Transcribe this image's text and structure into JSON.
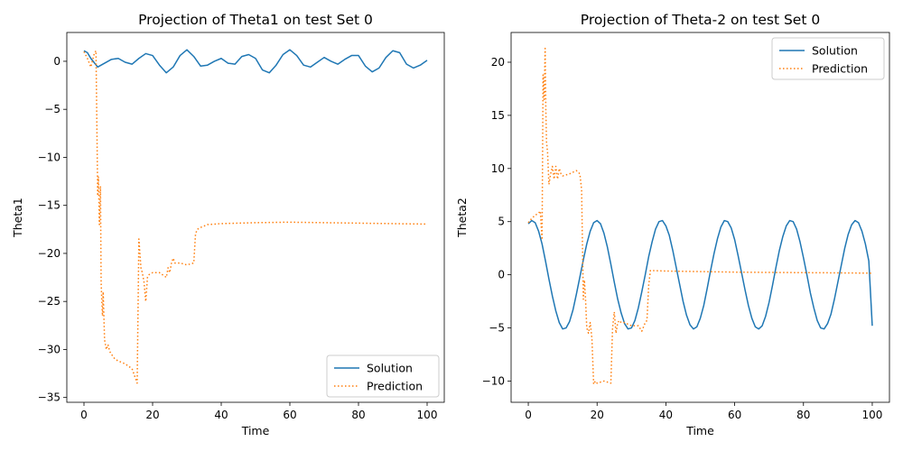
{
  "chart_data": [
    {
      "type": "line",
      "title": "Projection of Theta1 on test Set 0",
      "xlabel": "Time",
      "ylabel": "Theta1",
      "xlim": [
        -5,
        105
      ],
      "ylim": [
        -35.5,
        3
      ],
      "xticks": [
        0,
        20,
        40,
        60,
        80,
        100
      ],
      "yticks": [
        0,
        -5,
        -10,
        -15,
        -20,
        -25,
        -30,
        -35
      ],
      "xtick_labels": [
        "0",
        "20",
        "40",
        "60",
        "80",
        "100"
      ],
      "ytick_labels": [
        "0",
        "−5",
        "−10",
        "−15",
        "−20",
        "−25",
        "−30",
        "−35"
      ],
      "grid": false,
      "legend_position": "lower-right",
      "series": [
        {
          "name": "Solution",
          "style": "solid",
          "color": "#1f77b4",
          "x": [
            0,
            1,
            2,
            4,
            6,
            8,
            10,
            12,
            14,
            16,
            18,
            20,
            22,
            24,
            26,
            28,
            30,
            32,
            34,
            36,
            38,
            40,
            42,
            44,
            46,
            48,
            50,
            52,
            54,
            56,
            58,
            60,
            62,
            64,
            66,
            68,
            70,
            72,
            74,
            76,
            78,
            80,
            82,
            84,
            86,
            88,
            90,
            92,
            94,
            96,
            98,
            100
          ],
          "y": [
            1.1,
            0.9,
            0.3,
            -0.6,
            -0.2,
            0.2,
            0.3,
            -0.1,
            -0.3,
            0.3,
            0.8,
            0.6,
            -0.4,
            -1.2,
            -0.6,
            0.6,
            1.2,
            0.5,
            -0.5,
            -0.4,
            0.0,
            0.3,
            -0.2,
            -0.3,
            0.5,
            0.7,
            0.3,
            -0.9,
            -1.2,
            -0.4,
            0.7,
            1.2,
            0.6,
            -0.4,
            -0.6,
            -0.1,
            0.4,
            0.0,
            -0.3,
            0.2,
            0.6,
            0.6,
            -0.5,
            -1.1,
            -0.7,
            0.4,
            1.1,
            0.9,
            -0.3,
            -0.7,
            -0.4,
            0.1
          ]
        },
        {
          "name": "Prediction",
          "style": "dotted",
          "color": "#ff7f0e",
          "x": [
            0,
            1,
            2,
            3,
            3.5,
            4,
            4.2,
            4.5,
            4.8,
            5,
            5.2,
            5.4,
            5.6,
            6,
            6.5,
            7,
            7.5,
            8,
            9,
            10,
            12,
            14,
            15.5,
            16,
            16.3,
            16.6,
            17,
            17.5,
            18,
            18.5,
            19,
            20,
            22,
            24,
            24.5,
            25,
            25.5,
            26,
            26.5,
            27,
            28,
            30,
            32,
            32.5,
            33,
            34,
            36,
            40,
            50,
            60,
            70,
            80,
            90,
            100
          ],
          "y": [
            1.0,
            0.3,
            -0.6,
            0.8,
            1.1,
            -14,
            -12,
            -17,
            -13,
            -23,
            -25,
            -26.5,
            -24,
            -29,
            -30,
            -29.5,
            -30.2,
            -30.5,
            -31,
            -31.2,
            -31.5,
            -32,
            -33.5,
            -18.5,
            -20,
            -21.5,
            -22,
            -23,
            -25,
            -22.5,
            -22.2,
            -22,
            -22,
            -22.5,
            -21.5,
            -22,
            -21,
            -20.5,
            -21,
            -21,
            -21,
            -21.2,
            -21,
            -18,
            -17.5,
            -17.3,
            -17,
            -16.9,
            -16.8,
            -16.75,
            -16.8,
            -16.85,
            -16.9,
            -16.95
          ]
        }
      ]
    },
    {
      "type": "line",
      "title": "Projection of Theta-2 on test Set 0",
      "xlabel": "Time",
      "ylabel": "Theta2",
      "xlim": [
        -5,
        105
      ],
      "ylim": [
        -12,
        22.8
      ],
      "xticks": [
        0,
        20,
        40,
        60,
        80,
        100
      ],
      "yticks": [
        20,
        15,
        10,
        5,
        0,
        -5,
        -10
      ],
      "xtick_labels": [
        "0",
        "20",
        "40",
        "60",
        "80",
        "100"
      ],
      "ytick_labels": [
        "20",
        "15",
        "10",
        "5",
        "0",
        "−5",
        "−10"
      ],
      "grid": false,
      "legend_position": "upper-right",
      "series": [
        {
          "name": "Solution",
          "style": "solid",
          "color": "#1f77b4",
          "x": [
            0,
            1,
            2,
            3,
            4,
            5,
            6,
            7,
            8,
            9,
            10,
            11,
            12,
            13,
            14,
            15,
            16,
            17,
            18,
            19,
            20,
            21,
            22,
            23,
            24,
            25,
            26,
            27,
            28,
            29,
            30,
            31,
            32,
            33,
            34,
            35,
            36,
            37,
            38,
            39,
            40,
            41,
            42,
            43,
            44,
            45,
            46,
            47,
            48,
            49,
            50,
            51,
            52,
            53,
            54,
            55,
            56,
            57,
            58,
            59,
            60,
            61,
            62,
            63,
            64,
            65,
            66,
            67,
            68,
            69,
            70,
            71,
            72,
            73,
            74,
            75,
            76,
            77,
            78,
            79,
            80,
            81,
            82,
            83,
            84,
            85,
            86,
            87,
            88,
            89,
            90,
            91,
            92,
            93,
            94,
            95,
            96,
            97,
            98,
            99,
            100
          ],
          "y": [
            4.8,
            5.1,
            4.9,
            4.1,
            2.9,
            1.3,
            -0.4,
            -2.0,
            -3.4,
            -4.5,
            -5.1,
            -5.0,
            -4.4,
            -3.3,
            -1.8,
            -0.2,
            1.4,
            2.9,
            4.1,
            4.9,
            5.1,
            4.8,
            3.9,
            2.6,
            1.0,
            -0.7,
            -2.3,
            -3.6,
            -4.6,
            -5.1,
            -5.0,
            -4.3,
            -3.1,
            -1.6,
            0.0,
            1.7,
            3.1,
            4.3,
            5.0,
            5.1,
            4.6,
            3.7,
            2.3,
            0.7,
            -0.9,
            -2.5,
            -3.8,
            -4.7,
            -5.1,
            -4.9,
            -4.1,
            -2.9,
            -1.3,
            0.4,
            2.0,
            3.4,
            4.5,
            5.1,
            5.0,
            4.4,
            3.3,
            1.8,
            0.2,
            -1.4,
            -2.9,
            -4.1,
            -4.9,
            -5.1,
            -4.8,
            -3.9,
            -2.6,
            -1.0,
            0.7,
            2.3,
            3.6,
            4.6,
            5.1,
            5.0,
            4.3,
            3.1,
            1.6,
            0.0,
            -1.7,
            -3.1,
            -4.3,
            -5.0,
            -5.1,
            -4.6,
            -3.7,
            -2.3,
            -0.7,
            0.9,
            2.5,
            3.8,
            4.7,
            5.1,
            4.9,
            4.1,
            2.9,
            1.3,
            -4.8
          ]
        },
        {
          "name": "Prediction",
          "style": "dotted",
          "color": "#ff7f0e",
          "x": [
            0,
            1,
            2,
            3,
            3.5,
            4,
            4.3,
            4.6,
            4.9,
            5.1,
            5.3,
            5.6,
            6,
            6.5,
            7,
            7.5,
            8,
            8.5,
            9,
            9.5,
            10,
            12,
            14,
            15,
            15.5,
            16,
            16.3,
            16.6,
            17,
            17.5,
            18,
            18.5,
            19,
            19.5,
            20,
            22,
            24,
            24.5,
            25,
            25.5,
            26,
            26.5,
            27,
            28,
            30,
            32,
            33,
            34,
            34.5,
            35,
            35.5,
            40,
            50,
            60,
            70,
            80,
            90,
            100
          ],
          "y": [
            4.9,
            5.3,
            5.6,
            5.8,
            6.0,
            3.3,
            18.8,
            16.5,
            21.3,
            15.5,
            12.5,
            11.5,
            8.5,
            9.5,
            10.2,
            9.0,
            10.2,
            9.0,
            10.0,
            9.5,
            9.3,
            9.5,
            9.8,
            9.5,
            8.0,
            -2.3,
            -0.5,
            -2.0,
            -5.0,
            -5.5,
            -4.5,
            -6.0,
            -10.3,
            -10.0,
            -10.2,
            -10.0,
            -10.2,
            -5.0,
            -3.5,
            -5.5,
            -4.5,
            -4.3,
            -4.5,
            -4.5,
            -4.8,
            -4.8,
            -5.3,
            -4.5,
            -4.3,
            -1.0,
            0.4,
            0.35,
            0.3,
            0.25,
            0.22,
            0.2,
            0.18,
            0.15
          ]
        }
      ]
    }
  ]
}
